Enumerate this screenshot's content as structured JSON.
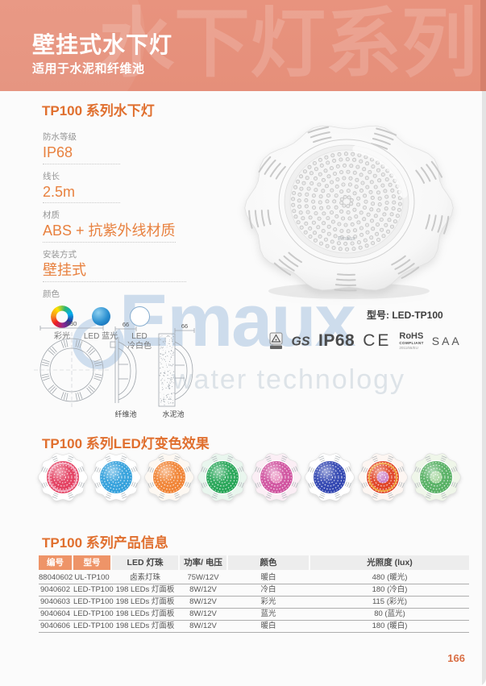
{
  "colors": {
    "accent_orange": "#e06f2e",
    "header_bg": "#e7917d",
    "table_header_orange": "#ee9468",
    "spec_value_orange": "#e8813f"
  },
  "header": {
    "title": "壁挂式水下灯",
    "subtitle": "适用于水泥和纤维池",
    "watermark": "水下灯系列"
  },
  "section1": {
    "title": "TP100 系列水下灯",
    "specs": [
      {
        "label": "防水等级",
        "value": "IP68"
      },
      {
        "label": "线长",
        "value": "2.5m"
      },
      {
        "label": "材质",
        "value": "ABS +  抗紫外线材质"
      },
      {
        "label": "安装方式",
        "value": "壁挂式"
      }
    ],
    "color_label": "颜色",
    "swatches": {
      "rainbow_label": "彩光",
      "blue_label": "LED 蓝光",
      "white_label_line1": "LED",
      "white_label_line2": "冷白色"
    }
  },
  "product": {
    "model_label": "型号: LED-TP100",
    "lens_brand": "Emaux"
  },
  "drawings": {
    "width_dim": "230",
    "depth_dim_fiber": "66",
    "depth_dim_concrete": "66",
    "label_fiber": "纤维池",
    "label_concrete": "水泥池"
  },
  "certs": {
    "ip": "IP68",
    "ce": "CE",
    "rohs_line1": "RoHS",
    "rohs_line2": "COMPLIANT",
    "rohs_line3": "2011/65/EU",
    "saa": "SAA"
  },
  "brand_watermark": {
    "name": "Emaux",
    "tagline": "water technology"
  },
  "section2": {
    "title": "TP100 系列LED灯变色效果",
    "lights": [
      {
        "name": "crimson",
        "lens": "#e23a5c",
        "body": "#ffffff",
        "ring": "#f5b5c8"
      },
      {
        "name": "blue",
        "lens": "#2e9edb",
        "body": "#ffffff"
      },
      {
        "name": "orange",
        "lens": "#f0802f",
        "body": "#fdf8f2"
      },
      {
        "name": "green",
        "lens": "#21a353",
        "body": "#e9f6ee"
      },
      {
        "name": "magenta",
        "lens": "#cf4f9d",
        "body": "#fbeef5",
        "center": "#e98fc0"
      },
      {
        "name": "indigo",
        "lens": "#2c41af",
        "body": "#ffffff"
      },
      {
        "name": "red-multi",
        "lens": "#df3d1f",
        "body": "#fdf6f2",
        "ring": "#f2b13f",
        "center": "#c77fd4"
      },
      {
        "name": "light-green",
        "lens": "#52ae5f",
        "body": "#eff6e9",
        "center": "#a8d8a0"
      }
    ]
  },
  "section3": {
    "title": "TP100 系列产品信息",
    "table": {
      "columns": [
        "编号",
        "型号",
        "LED 灯珠",
        "功率/ 电压",
        "颜色",
        "光照度 (lux)"
      ],
      "rows": [
        [
          "88040602",
          "UL-TP100",
          "卤素灯珠",
          "75W/12V",
          "暖白",
          "480 (暖光)"
        ],
        [
          "9040602",
          "LED-TP100",
          "198 LEDs 灯面板",
          "8W/12V",
          "冷白",
          "180 (冷白)"
        ],
        [
          "9040603",
          "LED-TP100",
          "198 LEDs 灯面板",
          "8W/12V",
          "彩光",
          "115 (彩光)"
        ],
        [
          "9040604",
          "LED-TP100",
          "198 LEDs 灯面板",
          "8W/12V",
          "蓝光",
          "80 (蓝光)"
        ],
        [
          "9040606",
          "LED-TP100",
          "198 LEDs 灯面板",
          "8W/12V",
          "暖白",
          "180 (暖白)"
        ]
      ]
    }
  },
  "page": {
    "number": "166"
  }
}
